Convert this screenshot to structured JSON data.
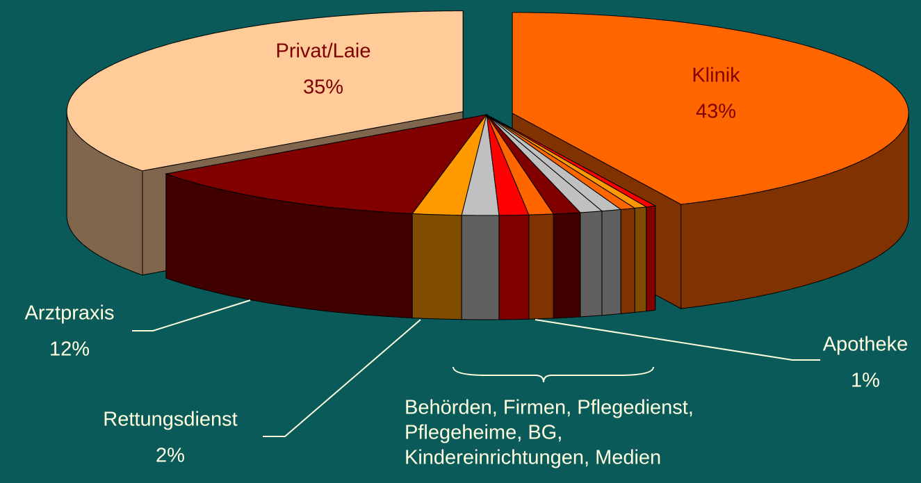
{
  "chart_data": {
    "type": "pie",
    "categories": [
      "Klinik",
      null,
      null,
      null,
      null,
      null,
      null,
      "Apotheke",
      null,
      null,
      "Rettungsdienst",
      "Arztpraxis",
      "Privat/Laie"
    ],
    "values": [
      43,
      0.4,
      0.5,
      0.6,
      0.8,
      0.9,
      1.1,
      1,
      1.2,
      1.5,
      2,
      12,
      35
    ],
    "value_labels": [
      "43%",
      null,
      null,
      null,
      null,
      null,
      null,
      "1%",
      null,
      null,
      "2%",
      "12%",
      "35%"
    ],
    "colors": [
      "#ff6600",
      "#ff0000",
      "#ff9900",
      "#ff6600",
      "#c0c0c0",
      "#c0c0c0",
      "#800000",
      "#ff6600",
      "#ff0000",
      "#c0c0c0",
      "#ff9900",
      "#800000",
      "#ffcc99"
    ],
    "annotation": [
      "Behörden, Firmen, Pflegedienst,",
      "Pflegeheime, BG,",
      "Kindereinrichtungen, Medien"
    ]
  }
}
